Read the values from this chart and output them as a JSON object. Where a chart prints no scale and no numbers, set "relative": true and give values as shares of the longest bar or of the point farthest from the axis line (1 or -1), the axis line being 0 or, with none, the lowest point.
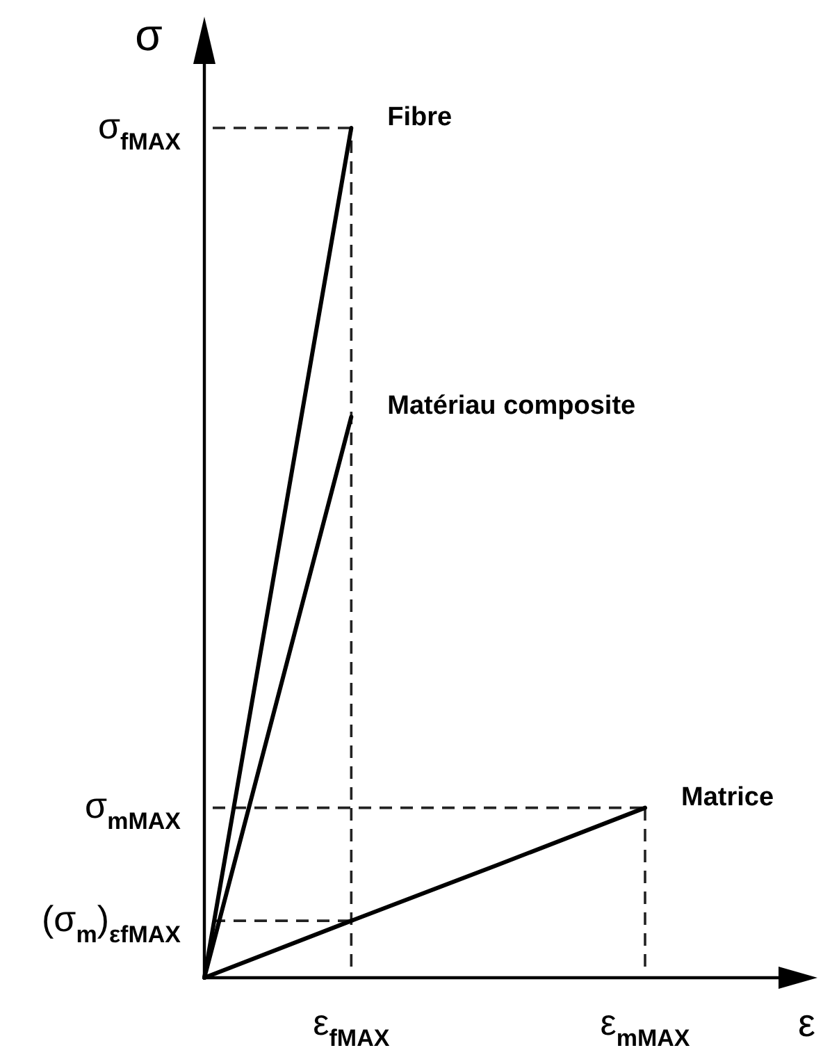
{
  "chart_data": {
    "type": "line",
    "xlabel": "ε",
    "ylabel": "σ",
    "relative": true,
    "categories": [
      null,
      "ε$_{fMAX}$",
      null,
      "ε$_{mMAX}$"
    ],
    "series": [
      {
        "name": "Fibre",
        "color": "#000000",
        "values": [
          0,
          1,
          null,
          null
        ]
      },
      {
        "name": "Matériau composite",
        "color": "#000000",
        "values": [
          0,
          0.66,
          null,
          null
        ]
      },
      {
        "name": "Matrice",
        "color": "#000000",
        "values": [
          0,
          0.067,
          0.133,
          0.2
        ]
      }
    ],
    "ref_lines": [
      {
        "axis": "y",
        "value": 1,
        "label": "σ$_{fMAX}$",
        "line_style": "dashed"
      },
      {
        "axis": "y",
        "value": 0.2,
        "label": "σ$_{mMAX}$",
        "line_style": "dashed"
      },
      {
        "axis": "y",
        "value": 0.067,
        "label": "(σ$_{m}$)$_{εfMAX}$",
        "line_style": "dashed"
      },
      {
        "axis": "x",
        "value": "ε$_{fMAX}$",
        "line_style": "dashed"
      },
      {
        "axis": "x",
        "value": "ε$_{mMAX}$",
        "line_style": "dashed"
      }
    ]
  }
}
